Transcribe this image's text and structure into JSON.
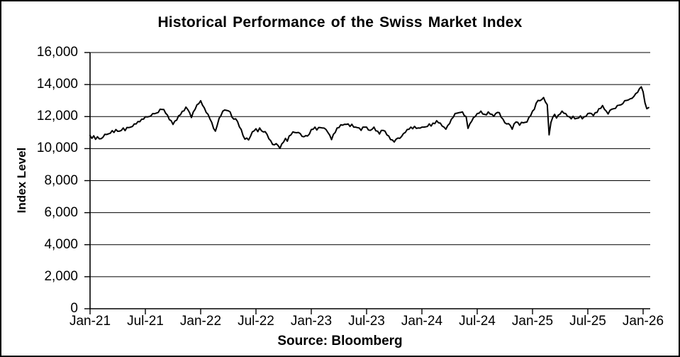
{
  "title": "Historical Performance of the Swiss Market Index",
  "source_label": "Source: Bloomberg",
  "colors": {
    "line": "#000000",
    "grid": "#000000",
    "background": "#ffffff",
    "text": "#000000"
  },
  "chart_data": {
    "type": "line",
    "title": "Historical Performance of the Swiss Market Index",
    "xlabel": "",
    "ylabel": "Index Level",
    "ylim": [
      0,
      16000
    ],
    "y_tick_step": 2000,
    "y_ticks": [
      "0",
      "2,000",
      "4,000",
      "6,000",
      "8,000",
      "10,000",
      "12,000",
      "14,000",
      "16,000"
    ],
    "x_ticks": [
      {
        "label": "Jan-21",
        "month": 0
      },
      {
        "label": "Jul-21",
        "month": 6
      },
      {
        "label": "Jan-22",
        "month": 12
      },
      {
        "label": "Jul-22",
        "month": 18
      },
      {
        "label": "Jan-23",
        "month": 24
      },
      {
        "label": "Jul-23",
        "month": 30
      },
      {
        "label": "Jan-24",
        "month": 36
      },
      {
        "label": "Jul-24",
        "month": 42
      },
      {
        "label": "Jan-25",
        "month": 48
      },
      {
        "label": "Jul-25",
        "month": 54
      },
      {
        "label": "Jan-26",
        "month": 60
      }
    ],
    "grid": "horizontal",
    "legend": "none",
    "source": "Source: Bloomberg",
    "series": [
      {
        "name": "Swiss Market Index",
        "x_start_month": 0,
        "x_step_months": 0.2,
        "x_start_label": "Jan-21",
        "values": [
          10780,
          10680,
          10760,
          10620,
          10700,
          10650,
          10580,
          10750,
          10850,
          10920,
          10880,
          11000,
          11080,
          11050,
          11150,
          11120,
          11050,
          11180,
          11250,
          11160,
          11280,
          11350,
          11300,
          11420,
          11500,
          11580,
          11650,
          11720,
          11800,
          11880,
          11950,
          12020,
          11960,
          12080,
          12150,
          12220,
          12180,
          12300,
          12420,
          12480,
          12400,
          12250,
          12050,
          11850,
          11700,
          11550,
          11680,
          11820,
          12000,
          12150,
          12280,
          12400,
          12550,
          12480,
          12200,
          11980,
          12250,
          12500,
          12700,
          12850,
          12950,
          12750,
          12500,
          12300,
          12100,
          11900,
          11600,
          11300,
          11050,
          11500,
          11850,
          12100,
          12300,
          12450,
          12350,
          12400,
          12250,
          12000,
          11800,
          11900,
          11650,
          11400,
          11150,
          10850,
          10550,
          10700,
          10500,
          10800,
          11000,
          11150,
          11200,
          11100,
          11250,
          11150,
          11000,
          11100,
          10850,
          10650,
          10450,
          10300,
          10200,
          10350,
          10150,
          10050,
          10250,
          10450,
          10600,
          10500,
          10750,
          10900,
          11000,
          11050,
          10950,
          11050,
          10900,
          10800,
          10700,
          10850,
          10750,
          10950,
          11150,
          11250,
          11300,
          11200,
          11280,
          11350,
          11250,
          11320,
          11150,
          11050,
          10800,
          10600,
          10850,
          11050,
          11250,
          11350,
          11450,
          11500,
          11480,
          11550,
          11500,
          11420,
          11480,
          11380,
          11300,
          11350,
          11250,
          11180,
          11300,
          11380,
          11300,
          11200,
          11100,
          11250,
          11300,
          11150,
          11050,
          10950,
          11100,
          11180,
          11050,
          10900,
          10750,
          10600,
          10500,
          10450,
          10550,
          10700,
          10600,
          10800,
          10900,
          11050,
          11150,
          11250,
          11300,
          11280,
          11350,
          11300,
          11250,
          11320,
          11300,
          11380,
          11320,
          11420,
          11500,
          11450,
          11550,
          11600,
          11700,
          11650,
          11550,
          11450,
          11300,
          11250,
          11400,
          11600,
          11800,
          12000,
          12150,
          12250,
          12200,
          12300,
          12250,
          12100,
          11950,
          11300,
          11500,
          11750,
          11900,
          12050,
          12150,
          12250,
          12300,
          12200,
          12100,
          12150,
          12250,
          12200,
          12100,
          12050,
          12150,
          12300,
          12200,
          12000,
          11800,
          11650,
          11500,
          11600,
          11400,
          11250,
          11500,
          11700,
          11600,
          11500,
          11600,
          11650,
          11600,
          11700,
          11900,
          12100,
          12300,
          12500,
          12800,
          13050,
          12950,
          13100,
          13150,
          12950,
          12700,
          10900,
          11600,
          12000,
          12100,
          11950,
          12050,
          12200,
          12300,
          12250,
          12150,
          12050,
          11950,
          11900,
          11980,
          11900,
          11850,
          11950,
          12000,
          11900,
          11950,
          12050,
          12150,
          12250,
          12150,
          12100,
          12200,
          12300,
          12450,
          12550,
          12650,
          12500,
          12300,
          12200,
          12350,
          12500,
          12450,
          12550,
          12650,
          12750,
          12700,
          12850,
          12950,
          13050,
          13000,
          13150,
          13100,
          13300,
          13400,
          13550,
          13700,
          13900,
          13500,
          12900,
          12450,
          12600
        ]
      }
    ]
  }
}
